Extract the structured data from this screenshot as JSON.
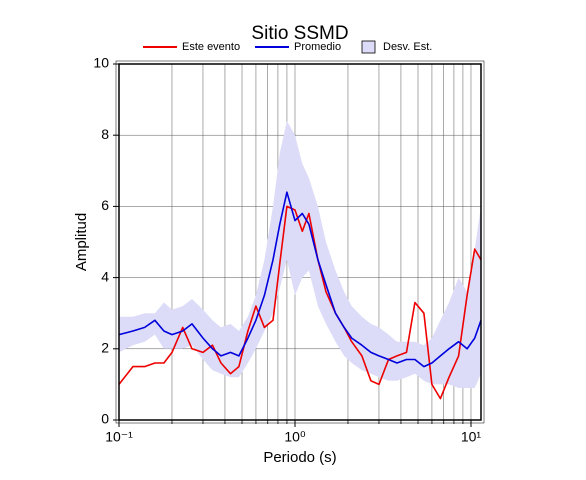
{
  "chart_data": {
    "type": "line",
    "title": "Sitio SSMD",
    "x_label": "Periodo (s)",
    "y_label": "Amplitud",
    "x_log": true,
    "grid": true,
    "xlim": [
      0.1,
      11.4
    ],
    "ylim": [
      0,
      10
    ],
    "xticks": [
      {
        "value": 0.1,
        "label": "10⁻¹"
      },
      {
        "value": 1,
        "label": "10⁰"
      },
      {
        "value": 10,
        "label": "10¹"
      }
    ],
    "yticks": [
      0,
      2,
      4,
      6,
      8,
      10
    ],
    "x": [
      0.1,
      0.12,
      0.14,
      0.16,
      0.18,
      0.2,
      0.23,
      0.26,
      0.3,
      0.34,
      0.38,
      0.43,
      0.48,
      0.54,
      0.6,
      0.67,
      0.75,
      0.82,
      0.9,
      1.0,
      1.1,
      1.2,
      1.35,
      1.5,
      1.7,
      1.9,
      2.1,
      2.4,
      2.7,
      3.0,
      3.4,
      3.8,
      4.3,
      4.8,
      5.4,
      6.0,
      6.7,
      7.5,
      8.5,
      9.5,
      10.5,
      11.4
    ],
    "series": [
      {
        "name": "Desv. Est.",
        "color": "#dcdcf8",
        "type": "band",
        "upper": [
          2.9,
          2.9,
          3.0,
          3.0,
          3.3,
          3.1,
          3.2,
          3.4,
          3.1,
          2.8,
          2.6,
          2.7,
          2.5,
          2.9,
          3.5,
          4.5,
          6.0,
          7.5,
          8.4,
          8.0,
          7.2,
          6.8,
          6.0,
          5.0,
          4.2,
          3.6,
          3.2,
          2.9,
          2.7,
          2.6,
          2.4,
          2.2,
          2.2,
          2.2,
          2.1,
          2.3,
          2.8,
          3.3,
          4.0,
          3.6,
          4.8,
          6.0
        ],
        "lower": [
          1.9,
          2.1,
          2.2,
          2.4,
          2.0,
          2.0,
          2.0,
          2.1,
          1.7,
          1.4,
          1.3,
          1.2,
          1.2,
          1.6,
          2.0,
          2.5,
          3.0,
          3.7,
          4.5,
          3.5,
          4.0,
          4.2,
          3.2,
          2.7,
          2.2,
          1.8,
          1.6,
          1.4,
          1.3,
          1.2,
          1.1,
          1.1,
          1.2,
          1.3,
          1.1,
          1.0,
          1.0,
          1.0,
          0.9,
          0.9,
          0.9,
          1.3
        ]
      },
      {
        "name": "Este evento",
        "color": "#ee0000",
        "values": [
          1.0,
          1.5,
          1.5,
          1.6,
          1.6,
          1.9,
          2.6,
          2.0,
          1.9,
          2.1,
          1.6,
          1.3,
          1.5,
          2.5,
          3.2,
          2.6,
          2.8,
          4.4,
          6.0,
          5.9,
          5.3,
          5.8,
          4.5,
          3.6,
          3.0,
          2.6,
          2.2,
          1.8,
          1.1,
          1.0,
          1.7,
          1.8,
          1.9,
          3.3,
          3.0,
          1.0,
          0.6,
          1.2,
          1.8,
          3.5,
          4.8,
          4.5
        ]
      },
      {
        "name": "Promedio",
        "color": "#0000dd",
        "values": [
          2.4,
          2.5,
          2.6,
          2.8,
          2.5,
          2.4,
          2.5,
          2.7,
          2.3,
          2.0,
          1.8,
          1.9,
          1.8,
          2.3,
          2.8,
          3.5,
          4.5,
          5.5,
          6.4,
          5.6,
          5.8,
          5.5,
          4.5,
          3.8,
          3.0,
          2.6,
          2.3,
          2.1,
          1.9,
          1.8,
          1.7,
          1.6,
          1.7,
          1.7,
          1.5,
          1.6,
          1.8,
          2.0,
          2.2,
          2.0,
          2.3,
          2.8
        ]
      }
    ]
  }
}
